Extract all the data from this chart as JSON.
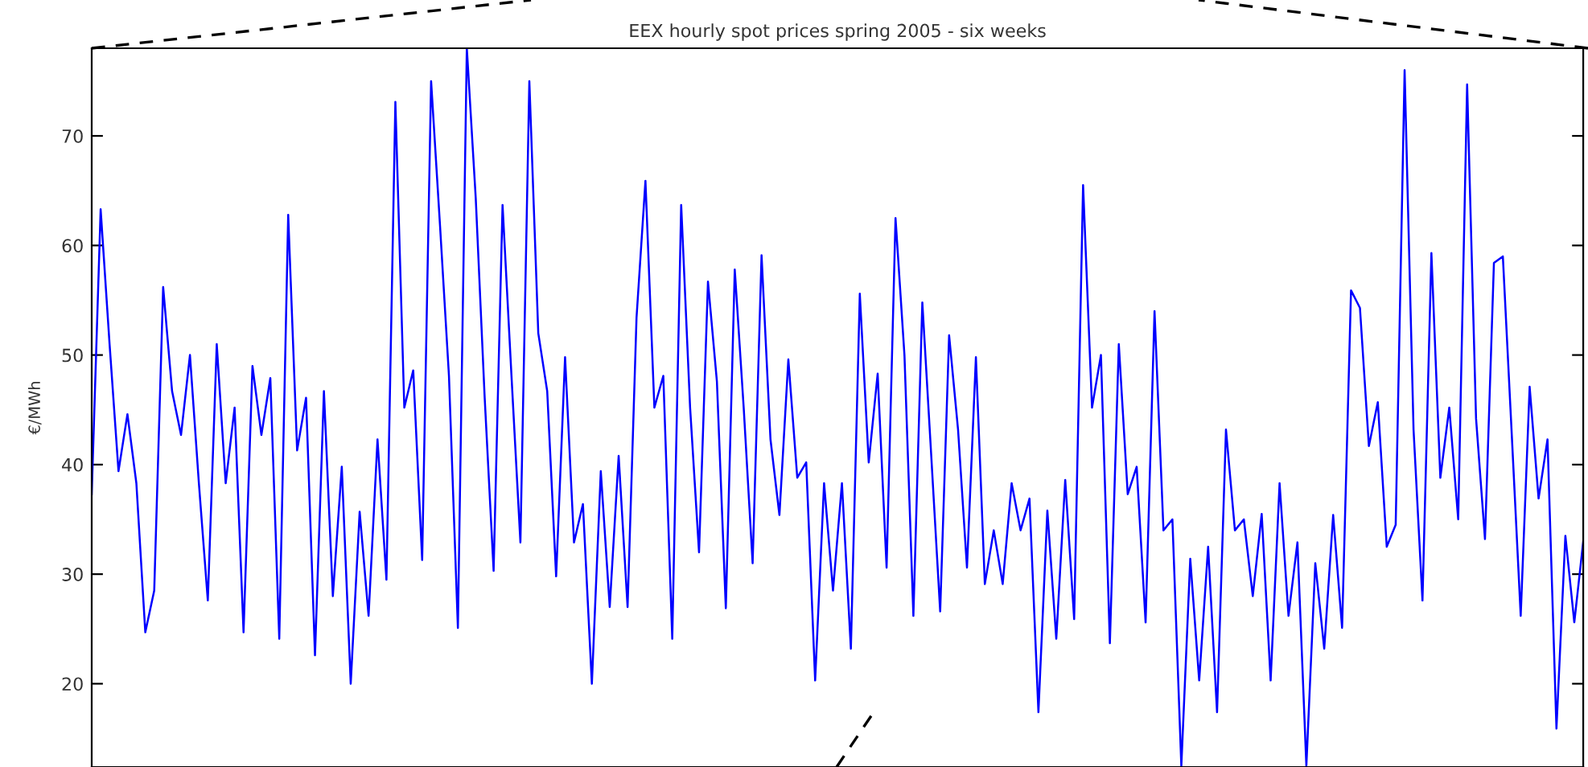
{
  "chart_data": {
    "type": "line",
    "title": "EEX hourly spot prices spring 2005 - six weeks",
    "ylabel": "€/MWh",
    "categories": [
      null,
      null,
      null,
      null,
      null,
      null,
      null,
      null,
      null,
      null,
      null,
      null,
      null,
      null,
      null,
      null,
      null,
      null,
      null,
      null,
      null,
      null,
      null,
      null,
      null,
      null,
      null,
      null,
      null,
      null,
      null,
      null,
      null,
      null,
      null,
      null,
      null,
      null,
      null,
      null,
      null,
      null,
      null,
      null,
      null,
      null,
      null,
      null,
      null,
      null,
      null,
      null,
      null,
      null,
      null,
      null,
      null,
      null,
      null,
      null,
      null,
      null,
      null,
      null,
      null,
      null,
      null,
      null,
      null,
      null,
      null,
      null,
      null,
      null,
      null,
      null,
      null,
      null,
      null,
      null,
      null,
      null,
      null,
      null,
      null,
      null,
      null,
      null,
      null,
      null,
      null,
      null,
      null,
      null,
      null,
      null,
      null,
      null,
      null,
      null,
      null,
      null,
      null,
      null,
      null,
      null,
      null,
      null,
      null,
      null,
      null,
      null,
      null,
      null,
      null,
      null,
      null,
      null,
      null,
      null,
      null,
      null,
      null,
      null,
      null,
      null,
      null,
      null,
      null,
      null,
      null,
      null,
      null,
      null,
      null,
      null,
      null,
      null,
      null,
      null,
      null,
      null,
      null,
      null,
      null,
      null,
      null,
      null,
      null,
      null,
      null,
      null,
      null,
      null,
      null,
      null,
      null,
      null,
      null,
      null,
      null,
      null,
      null,
      null,
      null,
      null,
      null,
      null
    ],
    "series": [
      {
        "color": "#0000ff",
        "values": [
          37.3,
          63.3,
          51,
          39.4,
          44.6,
          38.3,
          24.7,
          28.5,
          56.2,
          46.7,
          42.7,
          50,
          38.3,
          27.6,
          51,
          38.3,
          45.2,
          24.7,
          49,
          42.7,
          47.9,
          24.1,
          62.8,
          41.3,
          46.1,
          22.6,
          46.7,
          28,
          39.8,
          20,
          35.7,
          26.2,
          42.3,
          29.5,
          73.1,
          45.2,
          48.6,
          31.3,
          75,
          61.8,
          48.1,
          25.1,
          78,
          64.3,
          46.1,
          30.3,
          63.7,
          48.1,
          32.9,
          75,
          52,
          46.7,
          29.8,
          49.8,
          32.9,
          36.4,
          20,
          39.4,
          27,
          40.8,
          27,
          53.4,
          65.9,
          45.2,
          48.1,
          24.1,
          63.7,
          45.2,
          32,
          56.7,
          47.6,
          26.9,
          57.8,
          45.2,
          31,
          59.1,
          42.3,
          35.4,
          49.6,
          38.8,
          40.2,
          20.3,
          38.3,
          28.5,
          38.3,
          23.2,
          55.6,
          40.2,
          48.3,
          30.6,
          62.5,
          50,
          26.2,
          54.8,
          40.8,
          26.6,
          51.8,
          43.2,
          30.6,
          49.8,
          29.1,
          34,
          29.1,
          38.3,
          34,
          36.9,
          17.4,
          35.8,
          24.1,
          38.6,
          25.9,
          65.5,
          45.2,
          50,
          23.7,
          51,
          37.3,
          39.8,
          25.6,
          54,
          34,
          35,
          12.5,
          31.4,
          20.3,
          32.5,
          17.4,
          43.2,
          34,
          35,
          28,
          35.5,
          20.3,
          38.3,
          26.2,
          32.9,
          12.5,
          31,
          23.2,
          35.4,
          25.1,
          55.9,
          54.3,
          41.7,
          45.7,
          32.5,
          34.5,
          76,
          43.2,
          27.6,
          59.3,
          38.8,
          45.2,
          35,
          74.7,
          44.2,
          33.2,
          58.4,
          59,
          42.7,
          26.2,
          47.1,
          36.9,
          42.3,
          15.9,
          33.5,
          25.6,
          33
        ]
      }
    ],
    "ylim": [
      12.4,
      78
    ],
    "yticks": [
      20,
      30,
      40,
      50,
      60,
      70
    ],
    "grid": false,
    "tick_labels": "y"
  }
}
